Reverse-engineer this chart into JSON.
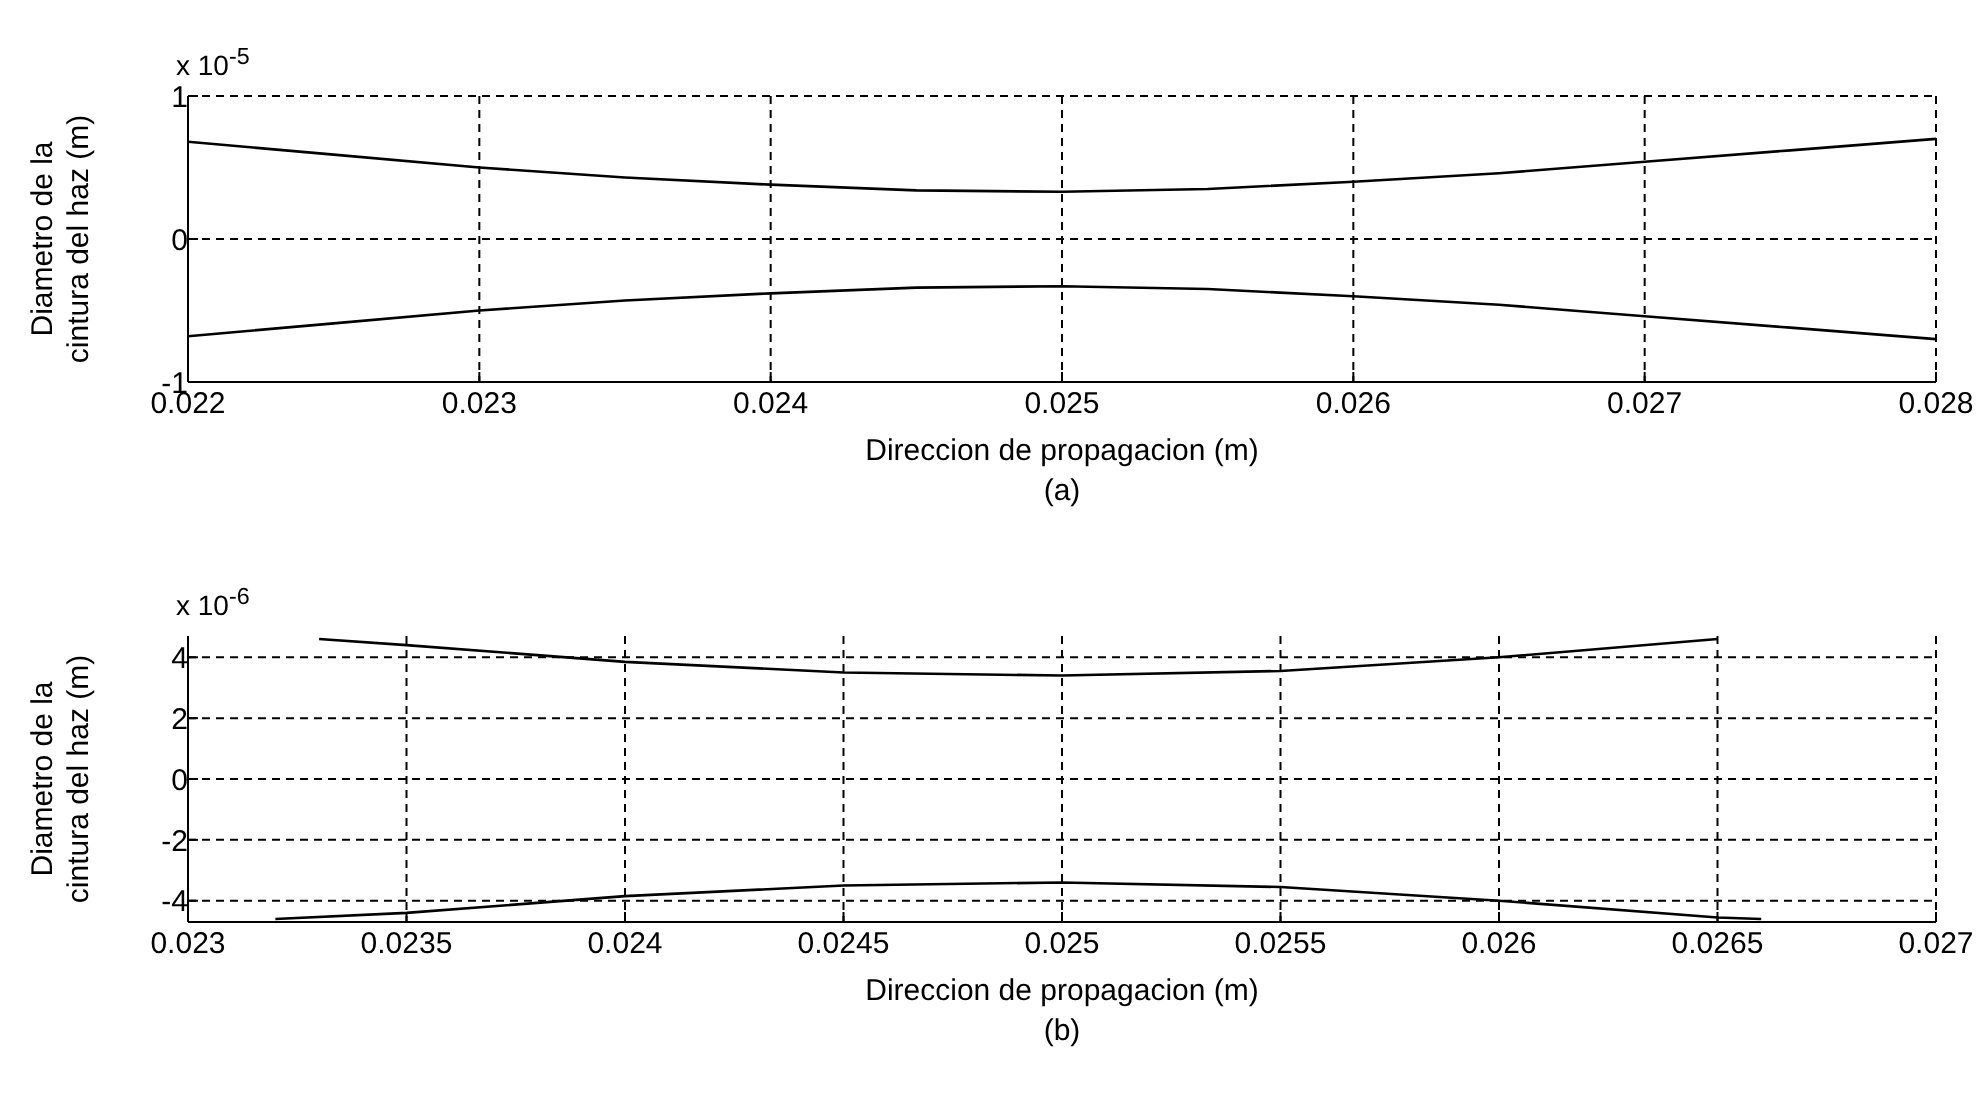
{
  "chart_data": [
    {
      "type": "line",
      "xlabel": "Direccion de propagacion (m)",
      "ylabel": "Diametro de la cintura del haz (m)",
      "annotations": [
        "x 10$^{-5}$",
        "(a)"
      ],
      "xlim": [
        0.022,
        0.028
      ],
      "xticks": [
        0.022,
        0.023,
        0.024,
        0.025,
        0.026,
        0.027,
        0.028
      ],
      "ylim": [
        -1,
        1
      ],
      "yticks": [
        -1,
        0,
        1
      ],
      "grid": true,
      "marker": "none",
      "line_style": "solid",
      "series": [
        {
          "color": "#000000",
          "x": [
            0.022,
            0.0225,
            0.023,
            0.0235,
            0.024,
            0.0245,
            0.025,
            0.0255,
            0.026,
            0.0265,
            0.027,
            0.0275,
            0.028
          ],
          "values": [
            0.68,
            0.59,
            0.5,
            0.43,
            0.38,
            0.34,
            0.33,
            0.35,
            0.4,
            0.46,
            0.54,
            0.62,
            0.7
          ]
        },
        {
          "color": "#000000",
          "x": [
            0.022,
            0.0225,
            0.023,
            0.0235,
            0.024,
            0.0245,
            0.025,
            0.0255,
            0.026,
            0.0265,
            0.027,
            0.0275,
            0.028
          ],
          "values": [
            -0.68,
            -0.59,
            -0.5,
            -0.43,
            -0.38,
            -0.34,
            -0.33,
            -0.35,
            -0.4,
            -0.46,
            -0.54,
            -0.62,
            -0.7
          ]
        }
      ]
    },
    {
      "type": "line",
      "xlabel": "Direccion de propagacion (m)",
      "ylabel": "Diametro de la cintura del haz (m)",
      "annotations": [
        "x 10$^{-6}$",
        "(b)"
      ],
      "xlim": [
        0.023,
        0.027
      ],
      "xticks": [
        0.023,
        0.0235,
        0.024,
        0.0245,
        0.025,
        0.0255,
        0.026,
        0.0265,
        0.027
      ],
      "ylim": [
        -4.7,
        4.7
      ],
      "yticks": [
        -4,
        -2,
        0,
        2,
        4
      ],
      "grid": true,
      "marker": "none",
      "line_style": "solid",
      "series": [
        {
          "color": "#000000",
          "x": [
            0.0233,
            0.0235,
            0.024,
            0.0245,
            0.025,
            0.0255,
            0.026,
            0.0265
          ],
          "values": [
            4.6,
            4.4,
            3.85,
            3.5,
            3.4,
            3.55,
            4.0,
            4.6
          ]
        },
        {
          "color": "#000000",
          "x": [
            0.0232,
            0.0235,
            0.024,
            0.0245,
            0.025,
            0.0255,
            0.026,
            0.0265,
            0.0266
          ],
          "values": [
            -4.6,
            -4.4,
            -3.85,
            -3.5,
            -3.4,
            -3.55,
            -4.0,
            -4.55,
            -4.6
          ]
        }
      ]
    }
  ]
}
